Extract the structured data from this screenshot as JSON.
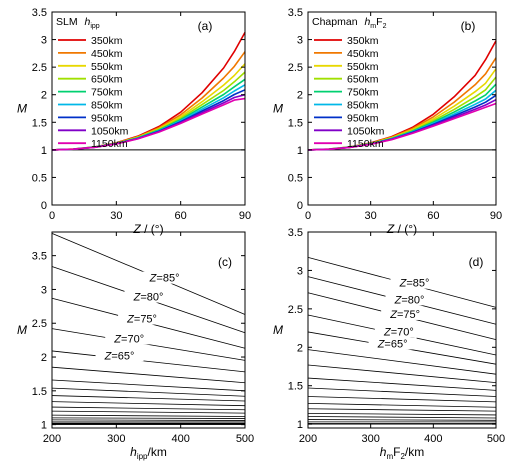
{
  "chart_data": [
    {
      "panel": "(a)",
      "type": "line",
      "legend_title": "SLM",
      "legend_heading": {
        "main": "h",
        "sub": "ipp"
      },
      "xlabel": "Z / (°)",
      "ylabel": "M",
      "xlim": [
        0,
        90
      ],
      "ylim": [
        0,
        3.5
      ],
      "xticks": [
        0,
        30,
        60,
        90
      ],
      "yticks": [
        0,
        0.5,
        1,
        1.5,
        2,
        2.5,
        3,
        3.5
      ],
      "legend_position": "top-left",
      "x": [
        0,
        10,
        20,
        30,
        40,
        50,
        60,
        70,
        80,
        85,
        90
      ],
      "series": [
        {
          "name": "350km",
          "color": "#e00000",
          "values": [
            1.0,
            1.013,
            1.054,
            1.128,
            1.247,
            1.425,
            1.682,
            2.037,
            2.485,
            2.782,
            3.13
          ]
        },
        {
          "name": "450km",
          "color": "#f07800",
          "values": [
            1.0,
            1.013,
            1.053,
            1.124,
            1.237,
            1.403,
            1.635,
            1.941,
            2.304,
            2.514,
            2.78
          ]
        },
        {
          "name": "550km",
          "color": "#e8d800",
          "values": [
            1.0,
            1.012,
            1.052,
            1.121,
            1.229,
            1.386,
            1.601,
            1.874,
            2.174,
            2.349,
            2.56
          ]
        },
        {
          "name": "650km",
          "color": "#a0e000",
          "values": [
            1.0,
            1.012,
            1.051,
            1.118,
            1.222,
            1.372,
            1.573,
            1.82,
            2.077,
            2.234,
            2.41
          ]
        },
        {
          "name": "750km",
          "color": "#00d070",
          "values": [
            1.0,
            1.012,
            1.05,
            1.115,
            1.216,
            1.36,
            1.549,
            1.776,
            2.003,
            2.144,
            2.28
          ]
        },
        {
          "name": "850km",
          "color": "#00b8e8",
          "values": [
            1.0,
            1.012,
            1.049,
            1.113,
            1.211,
            1.349,
            1.529,
            1.738,
            1.944,
            2.068,
            2.18
          ]
        },
        {
          "name": "950km",
          "color": "#0030c8",
          "values": [
            1.0,
            1.012,
            1.048,
            1.111,
            1.206,
            1.34,
            1.51,
            1.705,
            1.893,
            2.003,
            2.09
          ]
        },
        {
          "name": "1050km",
          "color": "#8000c8",
          "values": [
            1.0,
            1.012,
            1.047,
            1.109,
            1.202,
            1.331,
            1.494,
            1.676,
            1.851,
            1.949,
            2.0
          ]
        },
        {
          "name": "1150km",
          "color": "#e000b0",
          "values": [
            1.0,
            1.012,
            1.047,
            1.107,
            1.198,
            1.323,
            1.479,
            1.651,
            1.815,
            1.902,
            1.93
          ]
        }
      ],
      "reference_line": 1
    },
    {
      "panel": "(b)",
      "type": "line",
      "legend_title": "Chapman",
      "legend_heading": {
        "main": "h",
        "sub": "m",
        "tail": "F",
        "tail_sub": "2"
      },
      "xlabel": "Z / (°)",
      "ylabel": "M",
      "xlim": [
        0,
        90
      ],
      "ylim": [
        0,
        3.5
      ],
      "xticks": [
        0,
        30,
        60,
        90
      ],
      "yticks": [
        0,
        0.5,
        1,
        1.5,
        2,
        2.5,
        3,
        3.5
      ],
      "legend_position": "top-left",
      "x": [
        0,
        10,
        20,
        30,
        40,
        50,
        60,
        70,
        80,
        85,
        90
      ],
      "series": [
        {
          "name": "350km",
          "color": "#e00000",
          "values": [
            1.0,
            1.013,
            1.054,
            1.126,
            1.24,
            1.408,
            1.645,
            1.963,
            2.35,
            2.637,
            2.98
          ]
        },
        {
          "name": "450km",
          "color": "#f07800",
          "values": [
            1.0,
            1.012,
            1.052,
            1.121,
            1.229,
            1.385,
            1.598,
            1.866,
            2.179,
            2.38,
            2.67
          ]
        },
        {
          "name": "550km",
          "color": "#e8d800",
          "values": [
            1.0,
            1.012,
            1.051,
            1.117,
            1.22,
            1.366,
            1.559,
            1.791,
            2.054,
            2.208,
            2.47
          ]
        },
        {
          "name": "650km",
          "color": "#a0e000",
          "values": [
            1.0,
            1.012,
            1.05,
            1.114,
            1.212,
            1.351,
            1.528,
            1.733,
            1.96,
            2.089,
            2.32
          ]
        },
        {
          "name": "750km",
          "color": "#00d070",
          "values": [
            1.0,
            1.012,
            1.048,
            1.111,
            1.206,
            1.338,
            1.503,
            1.687,
            1.886,
            1.996,
            2.19
          ]
        },
        {
          "name": "850km",
          "color": "#00b8e8",
          "values": [
            1.0,
            1.011,
            1.047,
            1.108,
            1.2,
            1.326,
            1.481,
            1.649,
            1.826,
            1.922,
            2.08
          ]
        },
        {
          "name": "950km",
          "color": "#0030c8",
          "values": [
            1.0,
            1.011,
            1.046,
            1.105,
            1.194,
            1.316,
            1.462,
            1.618,
            1.778,
            1.864,
            1.99
          ]
        },
        {
          "name": "1050km",
          "color": "#8000c8",
          "values": [
            1.0,
            1.011,
            1.045,
            1.103,
            1.19,
            1.307,
            1.446,
            1.591,
            1.737,
            1.813,
            1.91
          ]
        },
        {
          "name": "1150km",
          "color": "#e000b0",
          "values": [
            1.0,
            1.011,
            1.044,
            1.101,
            1.185,
            1.298,
            1.431,
            1.567,
            1.702,
            1.771,
            1.84
          ]
        }
      ],
      "reference_line": 1
    },
    {
      "panel": "(c)",
      "type": "line",
      "xlabel": {
        "main": "h",
        "sub": "ipp",
        "tail": "/km"
      },
      "ylabel": "M",
      "xlim": [
        200,
        500
      ],
      "ylim": [
        0.95,
        3.85
      ],
      "xticks": [
        200,
        300,
        400,
        500
      ],
      "yticks": [
        1,
        1.5,
        2,
        2.5,
        3,
        3.5
      ],
      "x": [
        200,
        500
      ],
      "series": [
        {
          "name": "Z=85°",
          "label_at": 375,
          "values": [
            3.83,
            2.63
          ]
        },
        {
          "name": "Z=80°",
          "label_at": 350,
          "values": [
            3.34,
            2.36
          ]
        },
        {
          "name": "Z=75°",
          "label_at": 340,
          "values": [
            2.87,
            2.13
          ]
        },
        {
          "name": "Z=70°",
          "label_at": 320,
          "values": [
            2.42,
            1.95
          ]
        },
        {
          "name": "Z=65°",
          "label_at": 305,
          "values": [
            2.09,
            1.78
          ]
        },
        {
          "values": [
            1.85,
            1.62
          ]
        },
        {
          "values": [
            1.66,
            1.5
          ]
        },
        {
          "values": [
            1.54,
            1.42
          ]
        },
        {
          "values": [
            1.43,
            1.35
          ]
        },
        {
          "values": [
            1.34,
            1.28
          ]
        },
        {
          "values": [
            1.26,
            1.22
          ]
        },
        {
          "values": [
            1.2,
            1.17
          ]
        },
        {
          "values": [
            1.14,
            1.12
          ]
        },
        {
          "values": [
            1.1,
            1.09
          ]
        },
        {
          "values": [
            1.07,
            1.06
          ]
        },
        {
          "values": [
            1.04,
            1.04
          ]
        },
        {
          "values": [
            1.02,
            1.02
          ]
        },
        {
          "values": [
            1.01,
            1.01
          ]
        },
        {
          "values": [
            1.0,
            1.0
          ]
        }
      ]
    },
    {
      "panel": "(d)",
      "type": "line",
      "xlabel": {
        "main": "h",
        "sub": "m",
        "tail": "F",
        "tail_sub": "2",
        "unit": "/km"
      },
      "ylabel": "M",
      "xlim": [
        200,
        500
      ],
      "ylim": [
        0.95,
        3.5
      ],
      "xticks": [
        200,
        300,
        400,
        500
      ],
      "yticks": [
        1,
        1.5,
        2,
        2.5,
        3,
        3.5
      ],
      "x": [
        200,
        500
      ],
      "series": [
        {
          "name": "Z=85°",
          "label_at": 370,
          "values": [
            3.17,
            2.52
          ]
        },
        {
          "name": "Z=80°",
          "label_at": 362,
          "values": [
            2.92,
            2.3
          ]
        },
        {
          "name": "Z=75°",
          "label_at": 355,
          "values": [
            2.71,
            2.1
          ]
        },
        {
          "name": "Z=70°",
          "label_at": 345,
          "values": [
            2.42,
            1.9
          ]
        },
        {
          "name": "Z=65°",
          "label_at": 335,
          "values": [
            2.2,
            1.78
          ]
        },
        {
          "values": [
            1.97,
            1.65
          ]
        },
        {
          "values": [
            1.77,
            1.54
          ]
        },
        {
          "values": [
            1.6,
            1.44
          ]
        },
        {
          "values": [
            1.47,
            1.36
          ]
        },
        {
          "values": [
            1.36,
            1.29
          ]
        },
        {
          "values": [
            1.27,
            1.22
          ]
        },
        {
          "values": [
            1.2,
            1.17
          ]
        },
        {
          "values": [
            1.14,
            1.12
          ]
        },
        {
          "values": [
            1.1,
            1.08
          ]
        },
        {
          "values": [
            1.06,
            1.05
          ]
        },
        {
          "values": [
            1.03,
            1.03
          ]
        },
        {
          "values": [
            1.01,
            1.01
          ]
        },
        {
          "values": [
            1.0,
            1.0
          ]
        }
      ]
    }
  ]
}
